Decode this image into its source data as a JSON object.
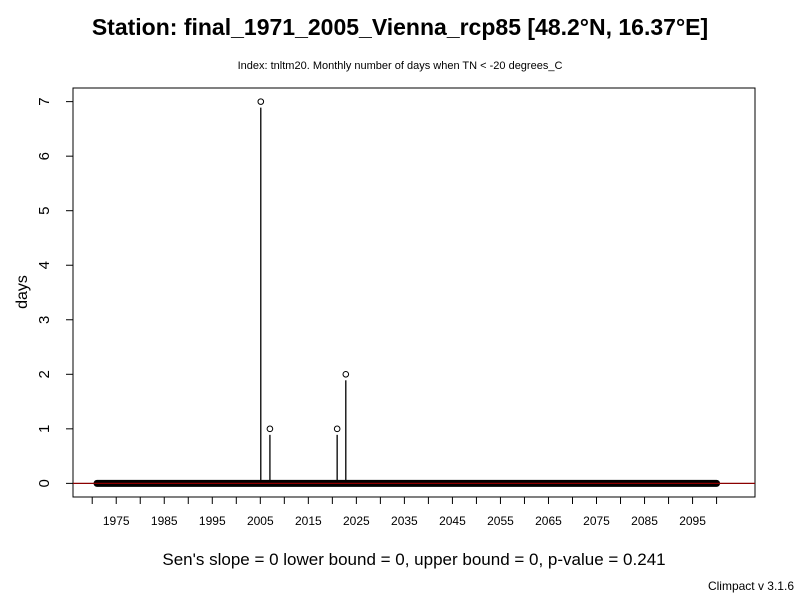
{
  "chart_data": {
    "type": "line",
    "title": "Station: final_1971_2005_Vienna_rcp85 [48.2°N, 16.37°E]",
    "subtitle": "Index: tnltm20. Monthly number of days when TN < -20 degrees_C",
    "xlabel": "",
    "ylabel": "days",
    "xlim": [
      1966,
      2108
    ],
    "ylim": [
      -0.25,
      7.25
    ],
    "x_ticks": [
      1975,
      1985,
      1995,
      2005,
      2015,
      2025,
      2035,
      2045,
      2055,
      2065,
      2075,
      2085,
      2095
    ],
    "x_minor_ticks": [
      1970,
      1980,
      1990,
      2000,
      2010,
      2020,
      2030,
      2040,
      2050,
      2060,
      2070,
      2080,
      2090,
      2100
    ],
    "y_ticks": [
      0,
      1,
      2,
      3,
      4,
      5,
      6,
      7
    ],
    "series_range": [
      1971,
      2100
    ],
    "nonzero_points": [
      {
        "x": 2005.1,
        "y": 7
      },
      {
        "x": 2007.0,
        "y": 1
      },
      {
        "x": 2021.0,
        "y": 1
      },
      {
        "x": 2022.8,
        "y": 2
      }
    ],
    "trend": {
      "slope": 0,
      "intercept": 0,
      "color": "#8b0000"
    },
    "grid": false,
    "series_color": "#000000"
  },
  "stats": {
    "text": "Sen's slope = 0   lower bound = 0,   upper bound = 0,   p-value = 0.241"
  },
  "credit": "Climpact v 3.1.6"
}
